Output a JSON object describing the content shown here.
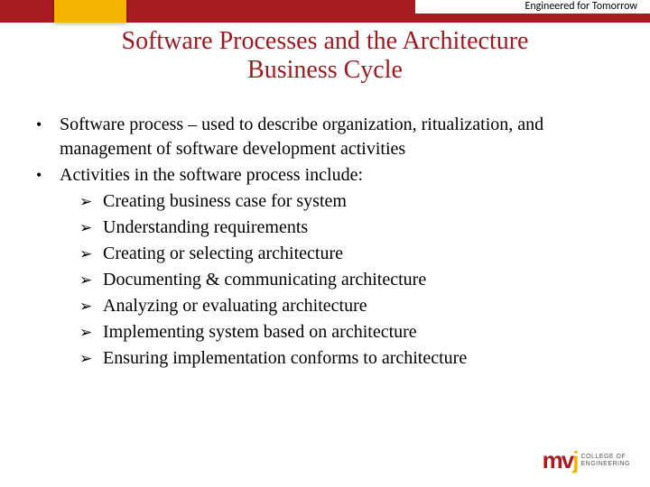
{
  "colors": {
    "red": "#a71c20",
    "gold": "#f5b400",
    "title": "#9a1b1f"
  },
  "header": {
    "tagline": "Engineered for Tomorrow"
  },
  "title_line1": "Software Processes and the Architecture",
  "title_line2": "Business Cycle",
  "bullets": [
    "Software process – used to describe organization, ritualization, and management of software development activities",
    "Activities in the software process include:"
  ],
  "arrows": [
    "Creating business case for system",
    "Understanding requirements",
    "Creating or selecting architecture",
    "Documenting & communicating architecture",
    "Analyzing or evaluating architecture",
    "Implementing system based on architecture",
    "Ensuring implementation conforms to architecture"
  ],
  "logo": {
    "mark_m": "m",
    "mark_v": "v",
    "mark_j": "j",
    "line1": "COLLEGE OF",
    "line2": "ENGINEERING"
  }
}
